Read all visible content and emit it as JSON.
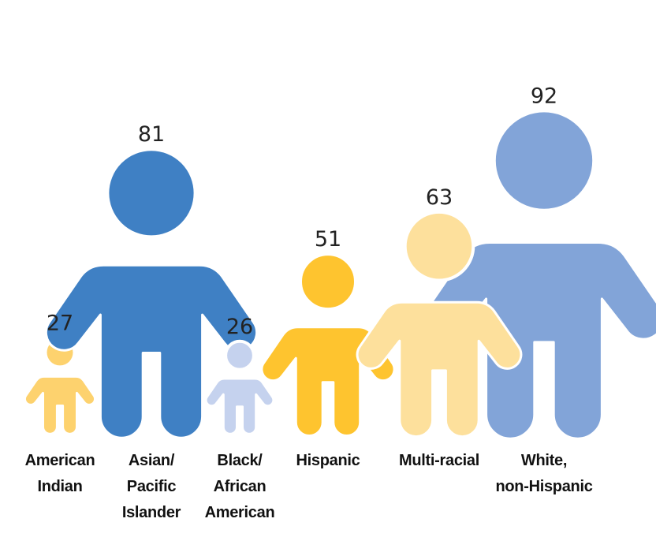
{
  "chart_data": {
    "type": "bar",
    "style": "pictograph (person figures scaled by value)",
    "categories": [
      [
        "American",
        "Indian"
      ],
      [
        "Asian/",
        "Pacific",
        "Islander"
      ],
      [
        "Black/",
        "African",
        "American"
      ],
      [
        "Hispanic"
      ],
      [
        "Multi-racial"
      ],
      [
        "White,",
        "non-Hispanic"
      ]
    ],
    "values": [
      27,
      81,
      26,
      51,
      63,
      92
    ],
    "colors": [
      "#fdd26e",
      "#3f80c4",
      "#c5d2ee",
      "#fec42f",
      "#fde09c",
      "#82a4d8"
    ],
    "title": "",
    "xlabel": "",
    "ylabel": "",
    "legend": "none",
    "grid": false
  }
}
